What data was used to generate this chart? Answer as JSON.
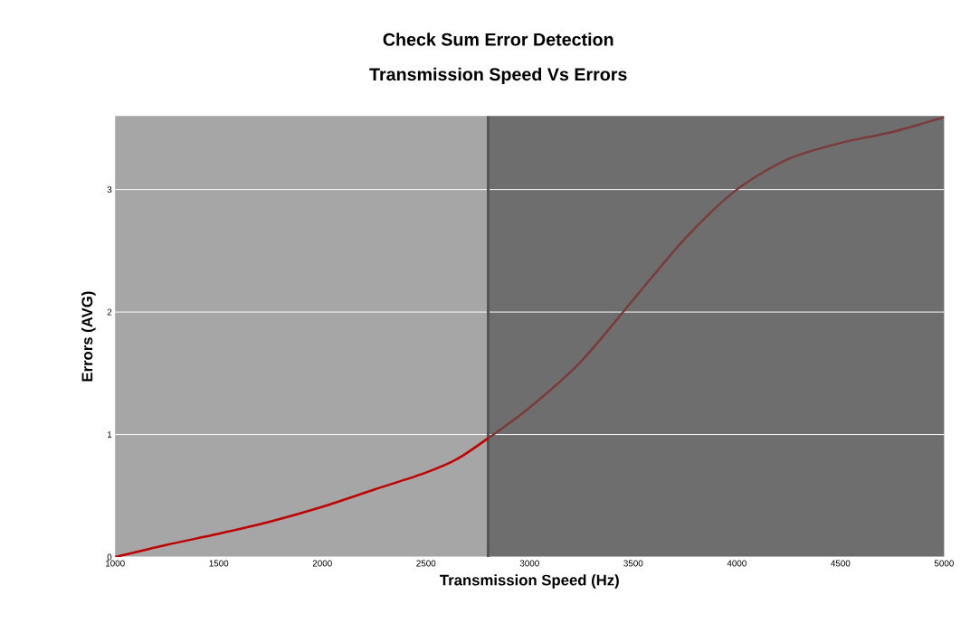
{
  "chart_data": {
    "type": "line",
    "title": "Check Sum Error Detection",
    "subtitle": "Transmission Speed Vs Errors",
    "xlabel": "Transmission Speed (Hz)",
    "ylabel": "Errors (AVG)",
    "xlim": [
      1000,
      5000
    ],
    "ylim": [
      0,
      3.6
    ],
    "xticks": [
      1000,
      1500,
      2000,
      2500,
      3000,
      3500,
      4000,
      4500,
      5000
    ],
    "yticks": [
      0,
      1,
      2,
      3
    ],
    "grid": "y",
    "series": [
      {
        "color": "#c00000",
        "x": [
          1000,
          1250,
          1500,
          1750,
          2000,
          2250,
          2500,
          2650,
          2800
        ],
        "values": [
          0,
          0.1,
          0.19,
          0.29,
          0.41,
          0.55,
          0.69,
          0.8,
          0.97
        ]
      },
      {
        "color": "#7b3b3b",
        "x": [
          2800,
          3000,
          3250,
          3500,
          3750,
          4000,
          4250,
          4500,
          4750,
          5000
        ],
        "values": [
          0.97,
          1.22,
          1.6,
          2.1,
          2.6,
          3.0,
          3.25,
          3.38,
          3.47,
          3.59
        ]
      }
    ],
    "bands": [
      {
        "axis": "x",
        "from": 1000,
        "to": 2800,
        "color": "#a6a6a6"
      },
      {
        "axis": "x",
        "from": 2800,
        "to": 5000,
        "color": "#6e6e6e"
      }
    ],
    "ref_lines": [
      {
        "axis": "x",
        "value": 2800,
        "color": "#545454",
        "line_style": "solid"
      }
    ]
  }
}
